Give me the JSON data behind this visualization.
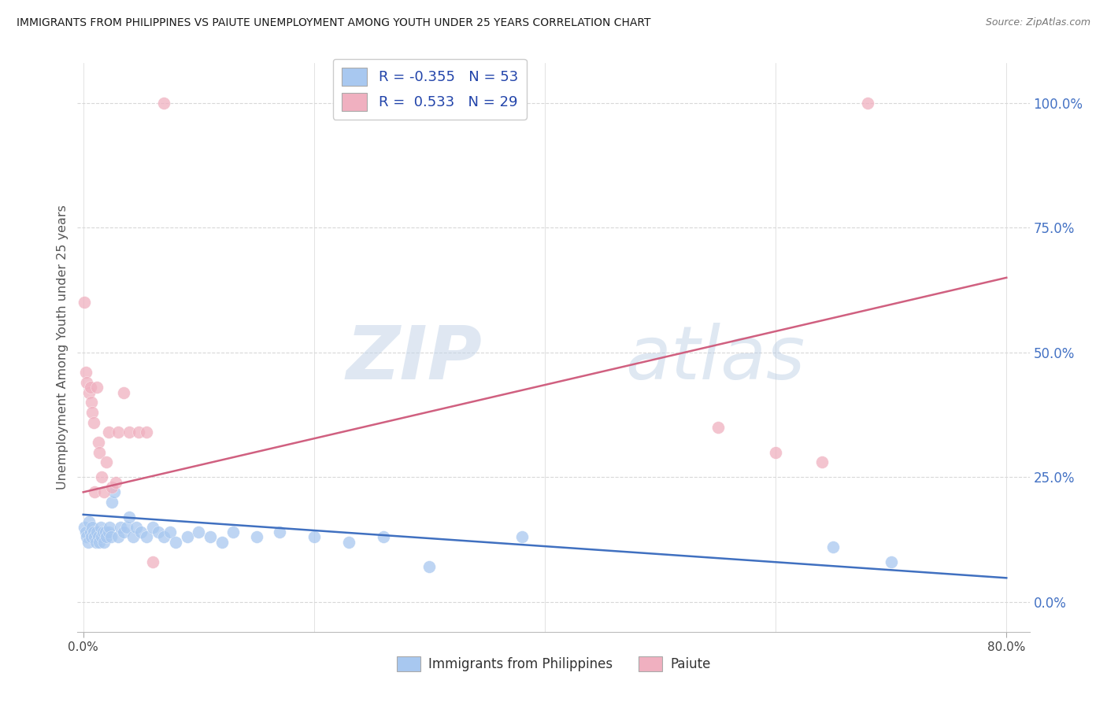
{
  "title": "IMMIGRANTS FROM PHILIPPINES VS PAIUTE UNEMPLOYMENT AMONG YOUTH UNDER 25 YEARS CORRELATION CHART",
  "source": "Source: ZipAtlas.com",
  "ylabel": "Unemployment Among Youth under 25 years",
  "ytick_labels": [
    "0.0%",
    "25.0%",
    "50.0%",
    "75.0%",
    "100.0%"
  ],
  "ytick_values": [
    0.0,
    0.25,
    0.5,
    0.75,
    1.0
  ],
  "xtick_labels": [
    "0.0%",
    "80.0%"
  ],
  "xtick_values": [
    0.0,
    0.8
  ],
  "xlim": [
    -0.005,
    0.82
  ],
  "ylim": [
    -0.06,
    1.08
  ],
  "background_color": "#ffffff",
  "grid_color": "#d8d8d8",
  "watermark_text": "ZIPatlas",
  "watermark_color": "#ccdcf0",
  "watermark_alpha": 0.5,
  "blue_label": "Immigrants from Philippines",
  "pink_label": "Paiute",
  "blue_R": "-0.355",
  "blue_N": "53",
  "pink_R": "0.533",
  "pink_N": "29",
  "blue_color": "#a8c8f0",
  "pink_color": "#f0b0c0",
  "blue_line_color": "#4070c0",
  "pink_line_color": "#d06080",
  "blue_x": [
    0.001,
    0.002,
    0.003,
    0.004,
    0.005,
    0.006,
    0.007,
    0.008,
    0.009,
    0.01,
    0.011,
    0.012,
    0.013,
    0.014,
    0.015,
    0.016,
    0.017,
    0.018,
    0.019,
    0.02,
    0.022,
    0.023,
    0.024,
    0.025,
    0.027,
    0.03,
    0.032,
    0.035,
    0.038,
    0.04,
    0.043,
    0.046,
    0.05,
    0.055,
    0.06,
    0.065,
    0.07,
    0.075,
    0.08,
    0.09,
    0.1,
    0.11,
    0.12,
    0.13,
    0.15,
    0.17,
    0.2,
    0.23,
    0.26,
    0.3,
    0.38,
    0.65,
    0.7
  ],
  "blue_y": [
    0.15,
    0.14,
    0.13,
    0.12,
    0.16,
    0.14,
    0.13,
    0.15,
    0.14,
    0.13,
    0.12,
    0.14,
    0.13,
    0.12,
    0.15,
    0.13,
    0.14,
    0.12,
    0.14,
    0.13,
    0.14,
    0.15,
    0.13,
    0.2,
    0.22,
    0.13,
    0.15,
    0.14,
    0.15,
    0.17,
    0.13,
    0.15,
    0.14,
    0.13,
    0.15,
    0.14,
    0.13,
    0.14,
    0.12,
    0.13,
    0.14,
    0.13,
    0.12,
    0.14,
    0.13,
    0.14,
    0.13,
    0.12,
    0.13,
    0.07,
    0.13,
    0.11,
    0.08
  ],
  "pink_x": [
    0.001,
    0.002,
    0.003,
    0.005,
    0.006,
    0.007,
    0.008,
    0.009,
    0.01,
    0.012,
    0.013,
    0.014,
    0.016,
    0.018,
    0.02,
    0.022,
    0.025,
    0.028,
    0.03,
    0.035,
    0.04,
    0.048,
    0.055,
    0.06,
    0.07,
    0.55,
    0.6,
    0.64,
    0.68
  ],
  "pink_y": [
    0.6,
    0.46,
    0.44,
    0.42,
    0.43,
    0.4,
    0.38,
    0.36,
    0.22,
    0.43,
    0.32,
    0.3,
    0.25,
    0.22,
    0.28,
    0.34,
    0.23,
    0.24,
    0.34,
    0.42,
    0.34,
    0.34,
    0.34,
    0.08,
    1.0,
    0.35,
    0.3,
    0.28,
    1.0
  ],
  "blue_trend_x": [
    0.0,
    0.8
  ],
  "blue_trend_y": [
    0.175,
    0.048
  ],
  "pink_trend_x": [
    0.0,
    0.8
  ],
  "pink_trend_y": [
    0.22,
    0.65
  ]
}
